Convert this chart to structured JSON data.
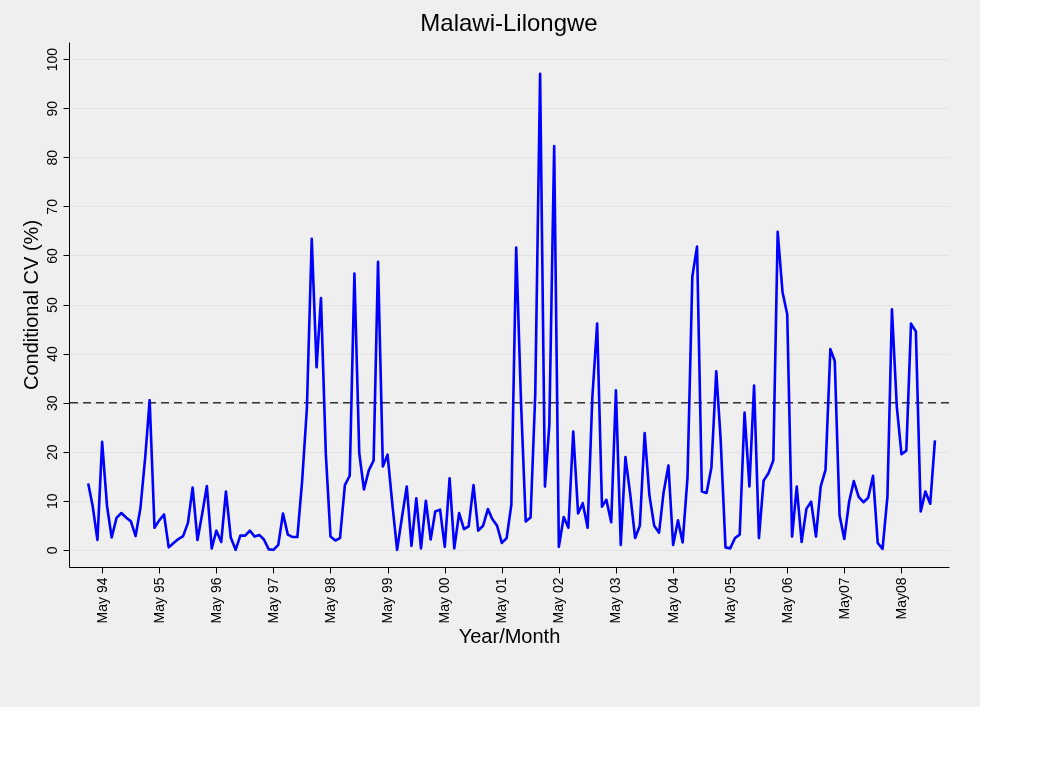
{
  "chart_data": {
    "type": "line",
    "title": "Malawi-Lilongwe",
    "xlabel": "Year/Month",
    "ylabel": "Conditional CV (%)",
    "x": [
      "1994-02",
      "1994-03",
      "1994-04",
      "1994-05",
      "1994-06",
      "1994-07",
      "1994-08",
      "1994-09",
      "1994-10",
      "1994-11",
      "1994-12",
      "1995-01",
      "1995-02",
      "1995-03",
      "1995-04",
      "1995-05",
      "1995-06",
      "1995-07",
      "1995-08",
      "1995-09",
      "1995-10",
      "1995-11",
      "1995-12",
      "1996-01",
      "1996-02",
      "1996-03",
      "1996-04",
      "1996-05",
      "1996-06",
      "1996-07",
      "1996-08",
      "1996-09",
      "1996-10",
      "1996-11",
      "1996-12",
      "1997-01",
      "1997-02",
      "1997-03",
      "1997-04",
      "1997-05",
      "1997-06",
      "1997-07",
      "1997-08",
      "1997-09",
      "1997-10",
      "1997-11",
      "1997-12",
      "1998-01",
      "1998-02",
      "1998-03",
      "1998-04",
      "1998-05",
      "1998-06",
      "1998-07",
      "1998-08",
      "1998-09",
      "1998-10",
      "1998-11",
      "1998-12",
      "1999-01",
      "1999-02",
      "1999-03",
      "1999-04",
      "1999-05",
      "1999-06",
      "1999-07",
      "1999-08",
      "1999-09",
      "1999-10",
      "1999-11",
      "1999-12",
      "2000-01",
      "2000-02",
      "2000-03",
      "2000-04",
      "2000-05",
      "2000-06",
      "2000-07",
      "2000-08",
      "2000-09",
      "2000-10",
      "2000-11",
      "2000-12",
      "2001-01",
      "2001-02",
      "2001-03",
      "2001-04",
      "2001-05",
      "2001-06",
      "2001-07",
      "2001-08",
      "2001-09",
      "2001-10",
      "2001-11",
      "2001-12",
      "2002-01",
      "2002-02",
      "2002-03",
      "2002-04",
      "2002-05",
      "2002-06",
      "2002-07",
      "2002-08",
      "2002-09",
      "2002-10",
      "2002-11",
      "2002-12",
      "2003-01",
      "2003-02",
      "2003-03",
      "2003-04",
      "2003-05",
      "2003-06",
      "2003-07",
      "2003-08",
      "2003-09",
      "2003-10",
      "2003-11",
      "2003-12",
      "2004-01",
      "2004-02",
      "2004-03",
      "2004-04",
      "2004-05",
      "2004-06",
      "2004-07",
      "2004-08",
      "2004-09",
      "2004-10",
      "2004-11",
      "2004-12",
      "2005-01",
      "2005-02",
      "2005-03",
      "2005-04",
      "2005-05",
      "2005-06",
      "2005-07",
      "2005-08",
      "2005-09",
      "2005-10",
      "2005-11",
      "2005-12",
      "2006-01",
      "2006-02",
      "2006-03",
      "2006-04",
      "2006-05",
      "2006-06",
      "2006-07",
      "2006-08",
      "2006-09",
      "2006-10",
      "2006-11",
      "2006-12",
      "2007-01",
      "2007-02",
      "2007-03",
      "2007-04",
      "2007-05",
      "2007-06",
      "2007-07",
      "2007-08",
      "2007-09",
      "2007-10",
      "2007-11",
      "2007-12",
      "2008-01",
      "2008-02",
      "2008-03",
      "2008-04",
      "2008-05",
      "2008-06",
      "2008-07",
      "2008-08",
      "2008-09",
      "2008-10",
      "2008-11",
      "2008-12"
    ],
    "series": [
      {
        "color": "#0000ff",
        "values": [
          13.5,
          9,
          2,
          22,
          9,
          2.5,
          6.5,
          7.5,
          6.6,
          5.8,
          2.8,
          8.5,
          19,
          30.5,
          4.5,
          6,
          7.2,
          0.5,
          1.4,
          2.2,
          2.8,
          5.5,
          12.7,
          2,
          7.5,
          13,
          0.3,
          3.9,
          1.6,
          11.9,
          2.5,
          0,
          2.9,
          2.9,
          3.9,
          2.7,
          3,
          2.1,
          0.1,
          0,
          1,
          7.4,
          3.1,
          2.6,
          2.6,
          14.2,
          28.9,
          63.4,
          37.2,
          51.3,
          19.6,
          2.7,
          1.9,
          2.4,
          13.2,
          15.1,
          56.3,
          19.7,
          12.3,
          16.2,
          18.2,
          58.7,
          17,
          19.4,
          9.2,
          0,
          6.6,
          12.9,
          0.8,
          10.5,
          0.3,
          10,
          2.1,
          7.8,
          8.2,
          0.6,
          14.6,
          0.3,
          7.5,
          4.2,
          4.8,
          13.2,
          3.9,
          4.9,
          8.3,
          6.3,
          4.9,
          1.4,
          2.4,
          9.2,
          61.6,
          30,
          5.8,
          6.6,
          31.7,
          97,
          12.9,
          25.4,
          82.3,
          0.6,
          6.7,
          4.5,
          24.1,
          7.4,
          9.5,
          4.5,
          31,
          46.1,
          8.8,
          10.2,
          5.6,
          32.5,
          1,
          18.9,
          11.2,
          2.4,
          4.9,
          23.8,
          11.2,
          4.9,
          3.5,
          11.7,
          17.2,
          1,
          6,
          1.5,
          14.7,
          55.7,
          61.8,
          11.9,
          11.6,
          16.8,
          36.4,
          22.5,
          0.5,
          0.3,
          2.4,
          3.1,
          28,
          12.9,
          33.5,
          2.4,
          14.1,
          15.6,
          18.2,
          64.8,
          52.5,
          48,
          2.7,
          12.9,
          1.6,
          8.4,
          9.8,
          2.7,
          12.9,
          16.3,
          40.9,
          38.5,
          7,
          2.2,
          9.8,
          14,
          10.8,
          9.7,
          10.6,
          15.1,
          1.4,
          0.2,
          10.8,
          49,
          29.2,
          19.5,
          20.2,
          46.1,
          44.5,
          7.8,
          11.9,
          9.4,
          22.3
        ]
      }
    ],
    "xlim": [
      "1993-10",
      "2009-03"
    ],
    "xticks": [
      {
        "value": "1994-05",
        "label": "May 94"
      },
      {
        "value": "1995-05",
        "label": "May 95"
      },
      {
        "value": "1996-05",
        "label": "May 96"
      },
      {
        "value": "1997-05",
        "label": "May 97"
      },
      {
        "value": "1998-05",
        "label": "May 98"
      },
      {
        "value": "1999-05",
        "label": "May 99"
      },
      {
        "value": "2000-05",
        "label": "May 00"
      },
      {
        "value": "2001-05",
        "label": "May 01"
      },
      {
        "value": "2002-05",
        "label": "May 02"
      },
      {
        "value": "2003-05",
        "label": "May 03"
      },
      {
        "value": "2004-05",
        "label": "May 04"
      },
      {
        "value": "2005-05",
        "label": "May 05"
      },
      {
        "value": "2006-05",
        "label": "May 06"
      },
      {
        "value": "2007-05",
        "label": "May07"
      },
      {
        "value": "2008-05",
        "label": "May08"
      }
    ],
    "ylim": [
      -3.5,
      103.5
    ],
    "yticks": [
      0,
      10,
      20,
      30,
      40,
      50,
      60,
      70,
      80,
      90,
      100
    ],
    "grid": "y",
    "line_style": "solid",
    "ref_lines": [
      {
        "axis": "y",
        "value": 30,
        "color": "#333333",
        "line_style": "dashed"
      }
    ]
  }
}
